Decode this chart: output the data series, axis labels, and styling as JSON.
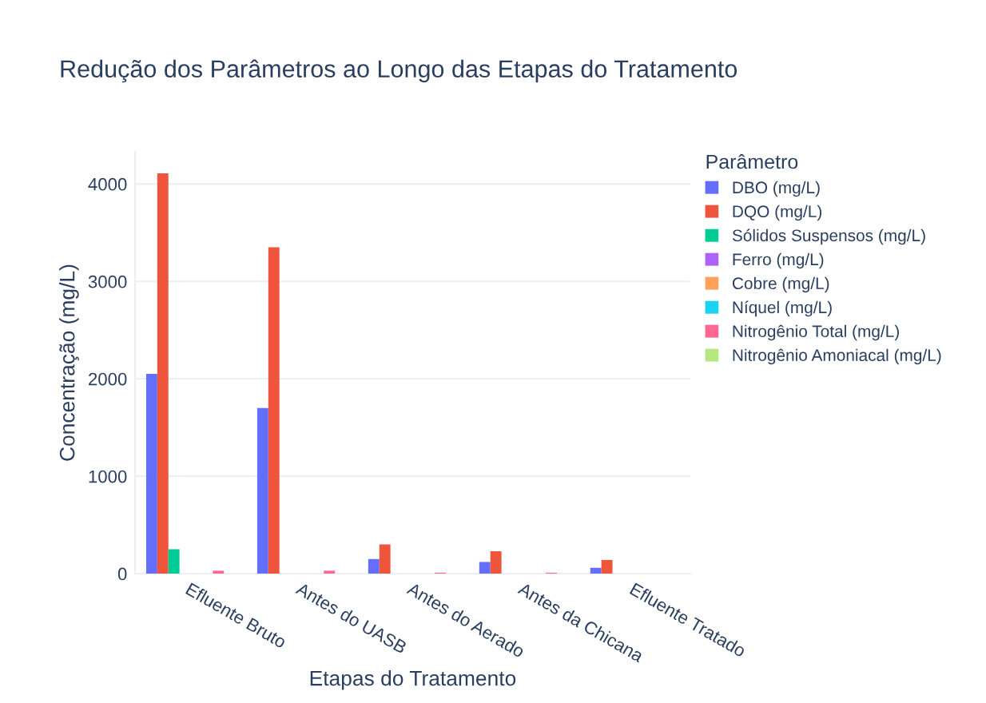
{
  "chart_data": {
    "type": "bar",
    "title": "Redução dos Parâmetros ao Longo das Etapas do Tratamento",
    "xlabel": "Etapas do Tratamento",
    "ylabel": "Concentração (mg/L)",
    "legend_title": "Parâmetro",
    "categories": [
      "Efluente Bruto",
      "Antes do UASB",
      "Antes do Aerado",
      "Antes da Chicana",
      "Efluente Tratado"
    ],
    "series": [
      {
        "name": "DBO (mg/L)",
        "color": "#636efa",
        "values": [
          2050,
          1700,
          150,
          120,
          60
        ]
      },
      {
        "name": "DQO (mg/L)",
        "color": "#ef553b",
        "values": [
          4110,
          3350,
          300,
          230,
          140
        ]
      },
      {
        "name": "Sólidos Suspensos (mg/L)",
        "color": "#00cc96",
        "values": [
          250,
          0,
          0,
          0,
          0
        ]
      },
      {
        "name": "Ferro (mg/L)",
        "color": "#ab63fa",
        "values": [
          0,
          0,
          0,
          0,
          0
        ]
      },
      {
        "name": "Cobre (mg/L)",
        "color": "#ffa15a",
        "values": [
          0,
          0,
          0,
          0,
          0
        ]
      },
      {
        "name": "Níquel (mg/L)",
        "color": "#19d3f3",
        "values": [
          0,
          0,
          0,
          0,
          0
        ]
      },
      {
        "name": "Nitrogênio Total (mg/L)",
        "color": "#ff6692",
        "values": [
          30,
          30,
          10,
          10,
          0
        ]
      },
      {
        "name": "Nitrogênio Amoniacal (mg/L)",
        "color": "#b6e880",
        "values": [
          0,
          0,
          0,
          0,
          0
        ]
      }
    ],
    "ylim": [
      0,
      4330
    ],
    "yticks": [
      0,
      1000,
      2000,
      3000,
      4000
    ],
    "grid": "y",
    "legend": "right"
  }
}
